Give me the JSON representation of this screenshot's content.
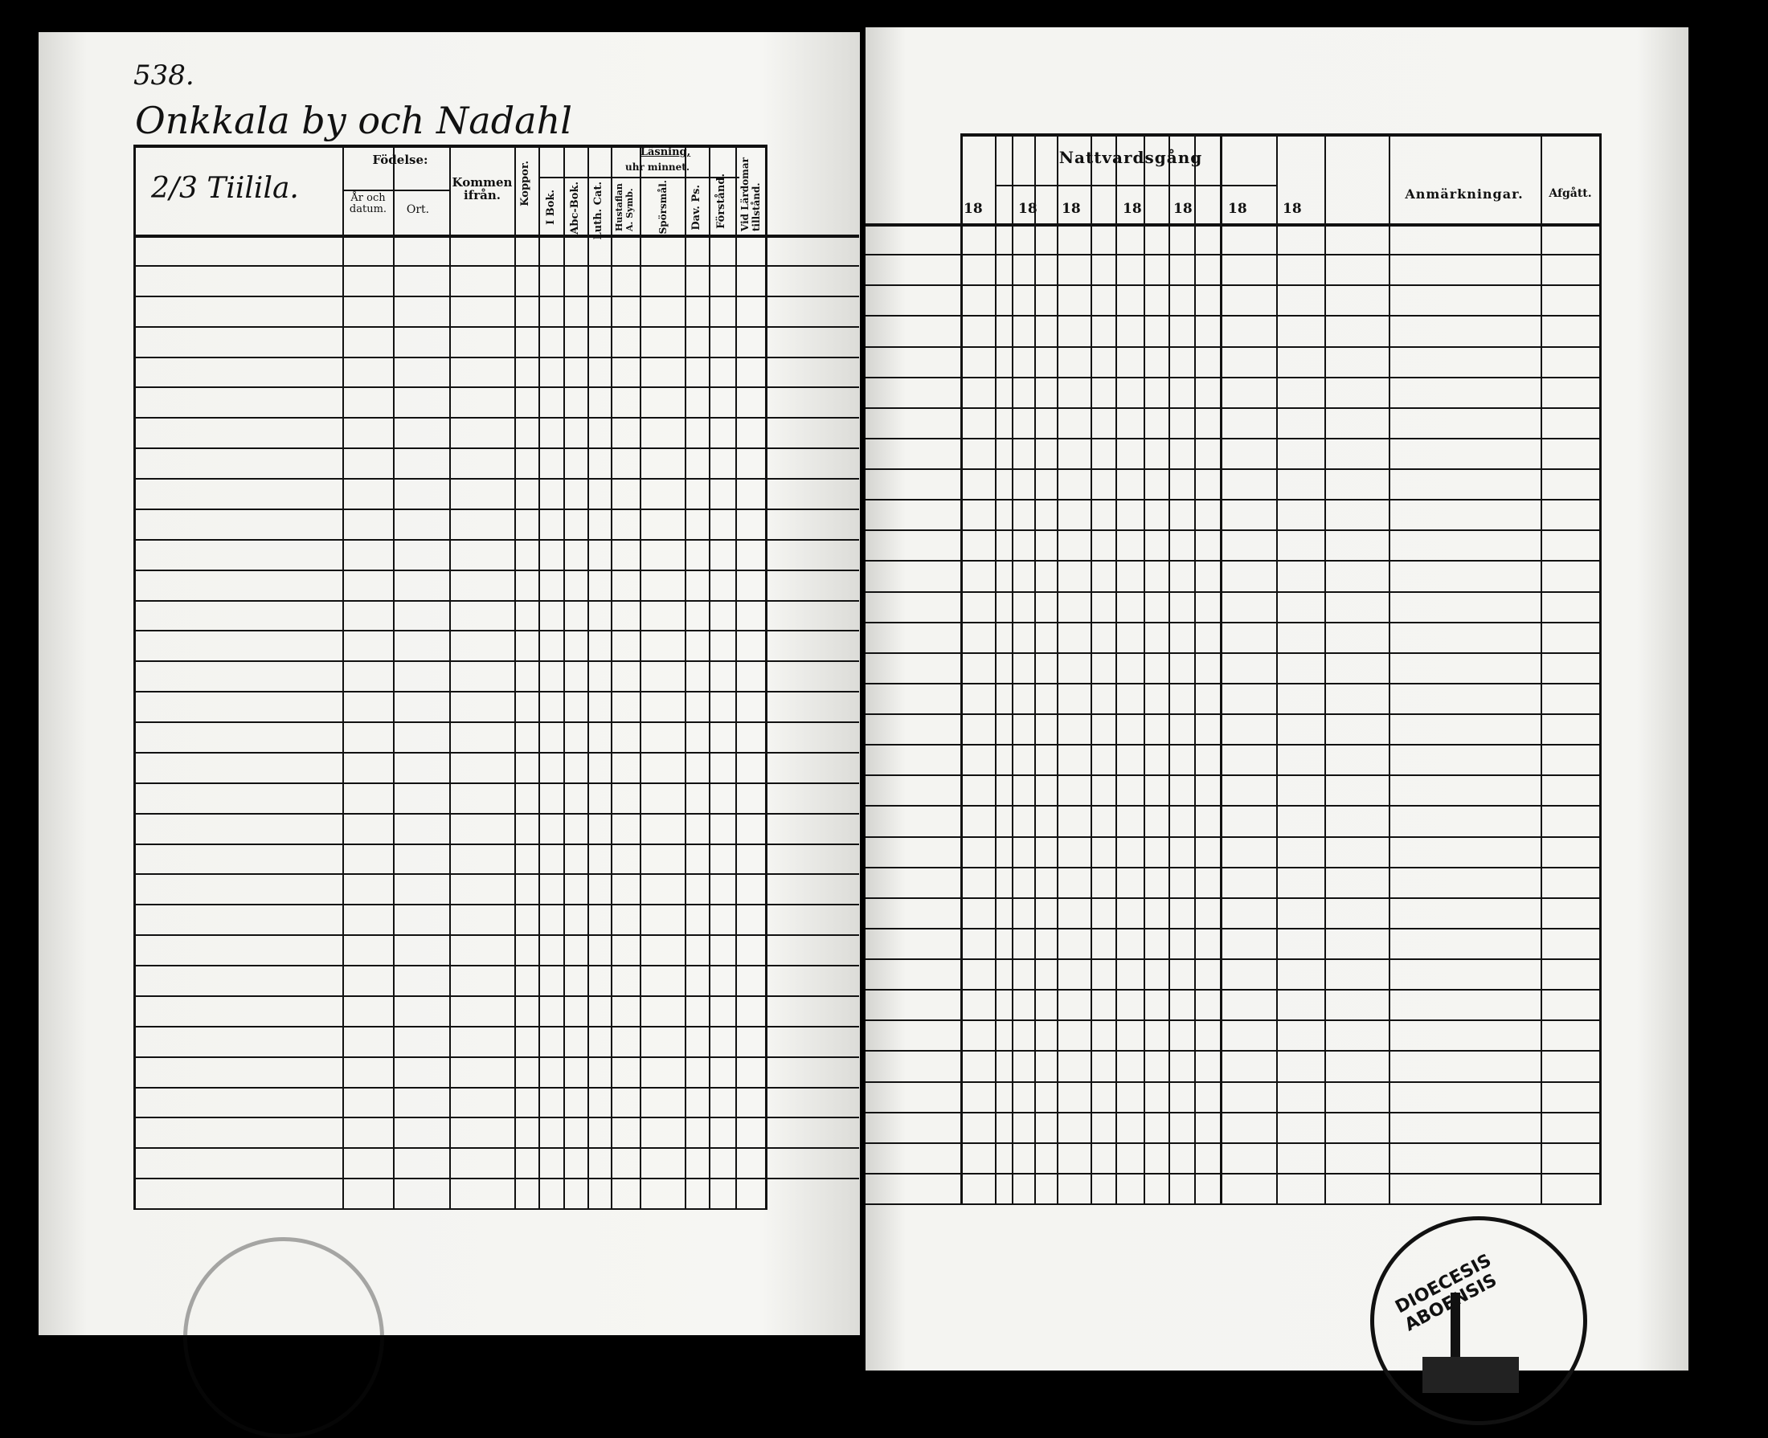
{
  "left_page": {
    "page_number": "538.",
    "village_heading": "Onkkala by och Nadahl",
    "farm_name": "2/3 Tiilila.",
    "headers": {
      "fodelse": "Födelse:",
      "ar_och_datum": "År och datum.",
      "ort": "Ort.",
      "kommen_ifran": "Kommen ifrån.",
      "koppor": "Koppor.",
      "lasning": "Läsning,",
      "uhr_minnet": "uhr minnet.",
      "i_bok": "I Bok.",
      "abc_bok": "Abc-Bok.",
      "luth_cat": "Luth. Cat.",
      "hustaflan": "Hustaflan A. Symb.",
      "sporsmal": "Spörsmål.",
      "dav_ps": "Dav. Ps.",
      "forstand": "Förstånd.",
      "vid_lardomar": "Vid Lärdomar tillstånd."
    }
  },
  "right_page": {
    "headers": {
      "nattvardsgang": "Nattvardsgång",
      "years": [
        "18",
        "18",
        "18",
        "18",
        "18",
        "18",
        "18"
      ],
      "anmarkningar": "Anmärkningar.",
      "afgatt": "Afgått."
    },
    "stamp": "DIOECESIS ABOENSIS"
  }
}
